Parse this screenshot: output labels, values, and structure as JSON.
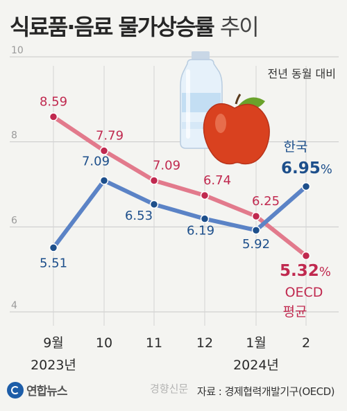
{
  "header": {
    "title_main": "식료품·음료 물가상승률",
    "title_sub": "추이"
  },
  "chart_data": {
    "type": "line",
    "categories": [
      "9월",
      "10",
      "11",
      "12",
      "1월",
      "2"
    ],
    "year_labels": [
      {
        "category": "9월",
        "label": "2023년"
      },
      {
        "category": "1월",
        "label": "2024년"
      }
    ],
    "unit_note": "전년 동월 대비",
    "ylim": [
      4,
      10
    ],
    "yticks": [
      4,
      6,
      8,
      10
    ],
    "series": [
      {
        "name": "한국",
        "color": "#1d4f8b",
        "line_color": "#5b83c6",
        "values": [
          5.51,
          7.09,
          6.53,
          6.19,
          5.92,
          6.95
        ],
        "value_labels": [
          "5.51",
          "7.09",
          "6.53",
          "6.19",
          "5.92",
          "6.95"
        ],
        "unit": "%"
      },
      {
        "name": "OECD 평균",
        "name_lines": [
          "OECD",
          "평균"
        ],
        "color": "#c0294f",
        "line_color": "#e27a8c",
        "values": [
          8.59,
          7.79,
          7.09,
          6.74,
          6.25,
          5.32
        ],
        "value_labels": [
          "8.59",
          "7.79",
          "7.09",
          "6.74",
          "6.25",
          "5.32"
        ],
        "unit": "%"
      }
    ]
  },
  "footer": {
    "logo_text": "연합뉴스",
    "source": "자료 : 경제협력개발기구(OECD)",
    "watermark": "경향신문"
  }
}
